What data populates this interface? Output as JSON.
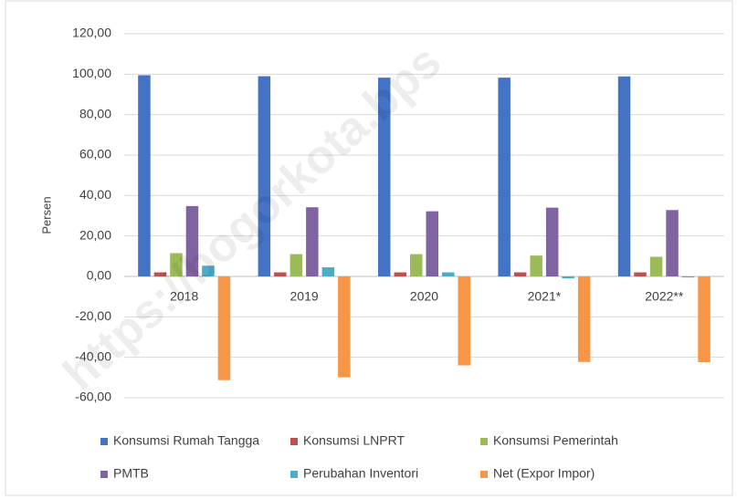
{
  "chart_data": {
    "type": "bar",
    "y_label": "Persen",
    "watermark": "https://bogorkota.bps",
    "categories": [
      "2018",
      "2019",
      "2020",
      "2021*",
      "2022**"
    ],
    "series": [
      {
        "name": "Konsumsi Rumah Tangga",
        "color": "#4472c4",
        "values": [
          99.5,
          99.0,
          98.3,
          98.3,
          98.9
        ]
      },
      {
        "name": "Konsumsi LNPRT",
        "color": "#c0504d",
        "values": [
          2.0,
          2.0,
          2.0,
          2.0,
          2.0
        ]
      },
      {
        "name": "Konsumsi Pemerintah",
        "color": "#9bbb59",
        "values": [
          11.5,
          11.0,
          11.0,
          10.3,
          9.7
        ]
      },
      {
        "name": "PMTB",
        "color": "#8064a2",
        "values": [
          34.8,
          34.2,
          32.2,
          34.0,
          32.8
        ]
      },
      {
        "name": "Perubahan Inventori",
        "color": "#4bacc6",
        "values": [
          5.3,
          4.5,
          2.0,
          -1.0,
          -0.5
        ]
      },
      {
        "name": "Net (Expor Impor)",
        "color": "#f79646",
        "values": [
          -51.3,
          -49.9,
          -44.0,
          -42.3,
          -42.4
        ]
      }
    ],
    "ylim": [
      -60,
      120
    ],
    "yticks": [
      {
        "value": -60,
        "label": "-60,00"
      },
      {
        "value": -40,
        "label": "-40,00"
      },
      {
        "value": -20,
        "label": "-20,00"
      },
      {
        "value": 0,
        "label": "0,00"
      },
      {
        "value": 20,
        "label": "20,00"
      },
      {
        "value": 40,
        "label": "40,00"
      },
      {
        "value": 60,
        "label": "60,00"
      },
      {
        "value": 80,
        "label": "80,00"
      },
      {
        "value": 100,
        "label": "100,00"
      },
      {
        "value": 120,
        "label": "120,00"
      }
    ],
    "grid": true
  }
}
